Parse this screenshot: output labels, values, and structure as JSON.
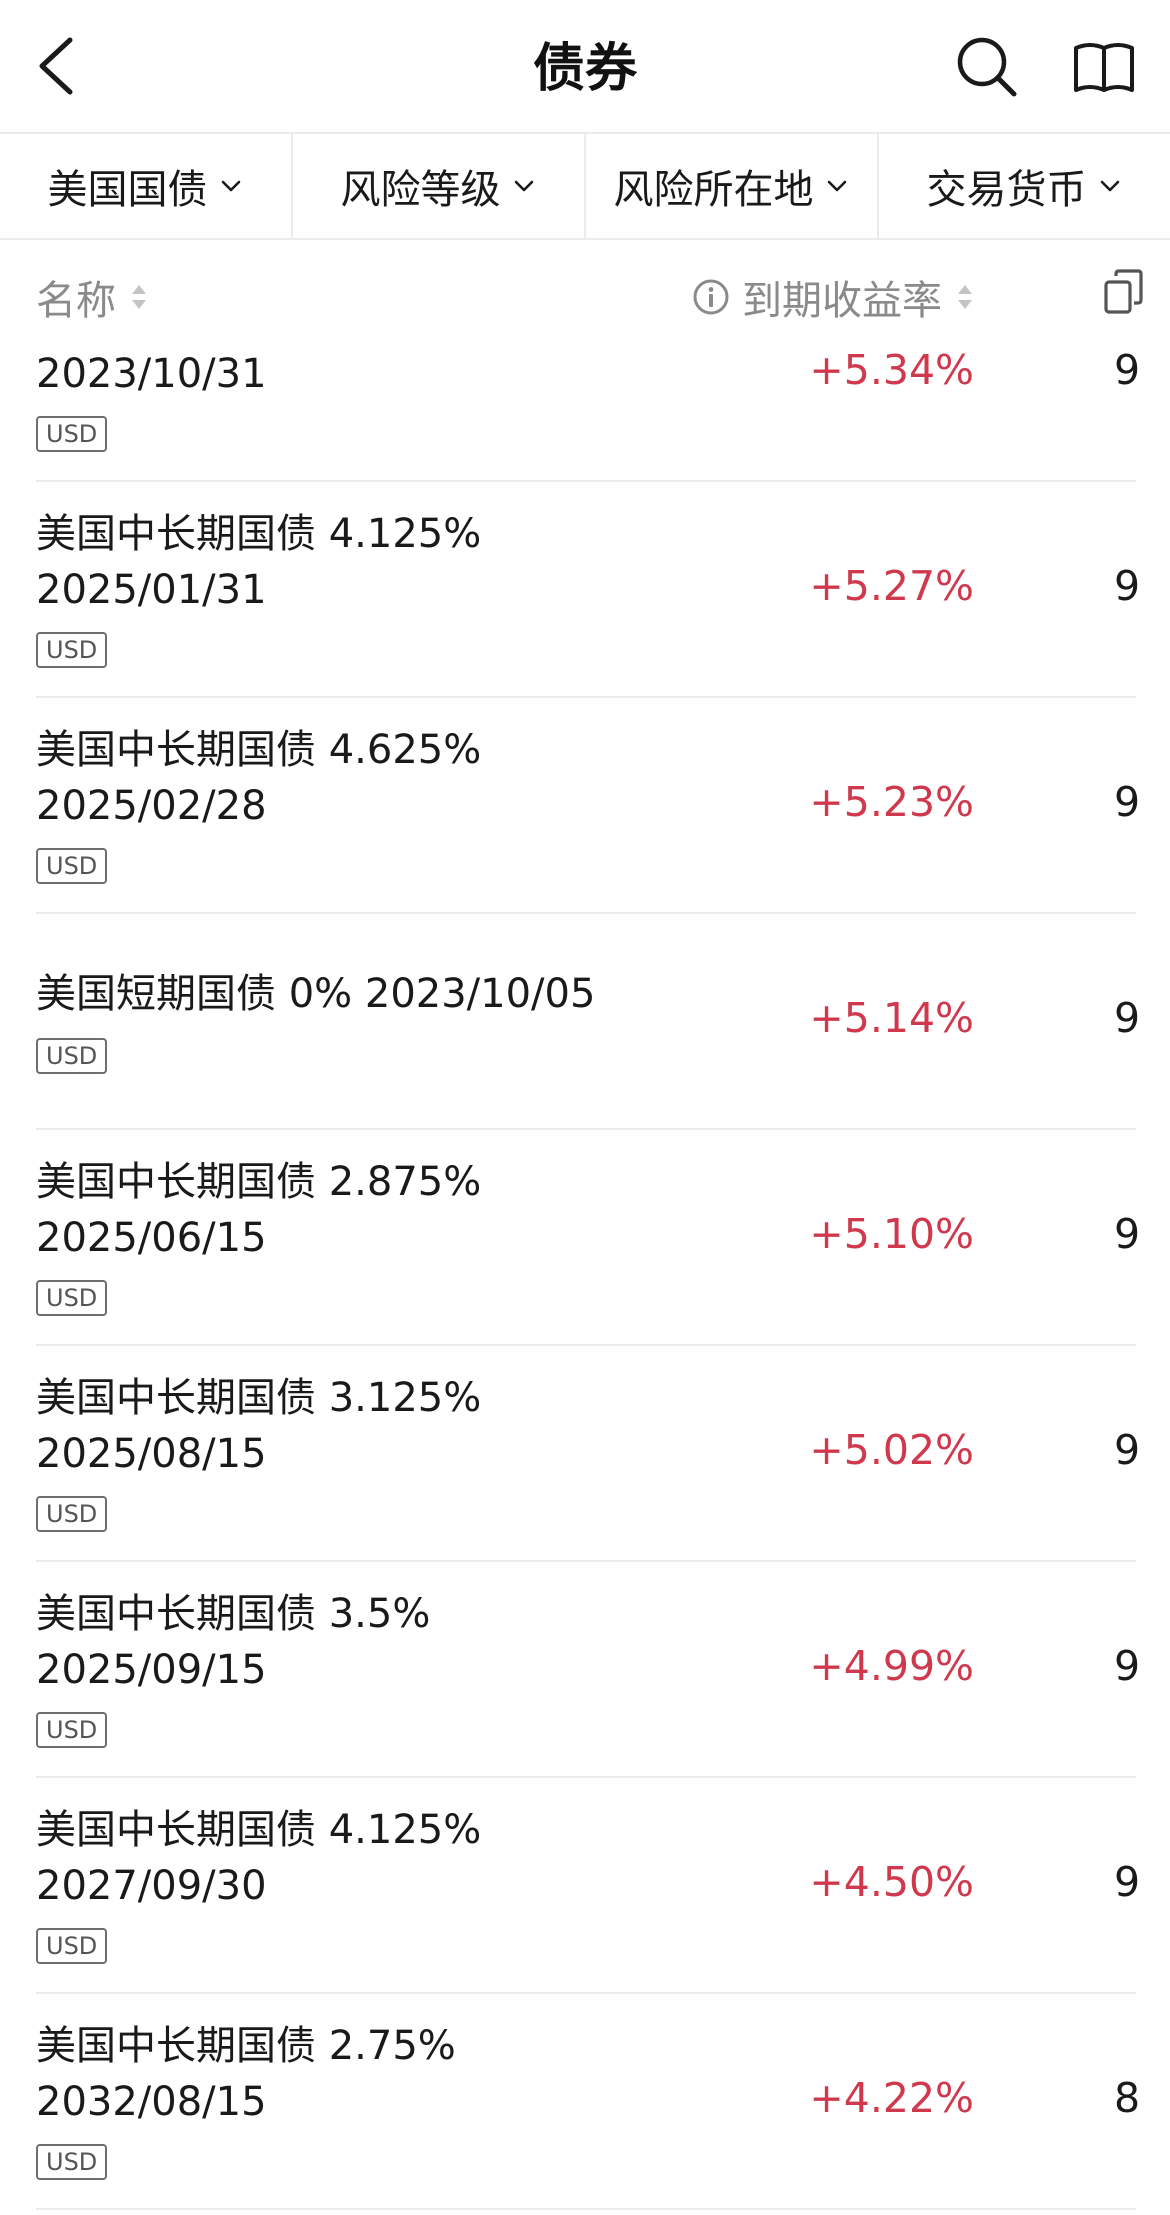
{
  "header": {
    "title": "债券"
  },
  "filters": [
    {
      "label": "美国国债"
    },
    {
      "label": "风险等级"
    },
    {
      "label": "风险所在地"
    },
    {
      "label": "交易货币"
    }
  ],
  "columns": {
    "name": "名称",
    "yield": "到期收益率"
  },
  "rows": [
    {
      "name_line1": "",
      "name_line2": "2023/10/31",
      "currency": "USD",
      "yield": "+5.34%",
      "extra": "9"
    },
    {
      "name_line1": "美国中长期国债 4.125%",
      "name_line2": "2025/01/31",
      "currency": "USD",
      "yield": "+5.27%",
      "extra": "9"
    },
    {
      "name_line1": "美国中长期国债 4.625%",
      "name_line2": "2025/02/28",
      "currency": "USD",
      "yield": "+5.23%",
      "extra": "9"
    },
    {
      "name_line1": "美国短期国债 0% 2023/10/05",
      "name_line2": "",
      "currency": "USD",
      "yield": "+5.14%",
      "extra": "9"
    },
    {
      "name_line1": "美国中长期国债 2.875%",
      "name_line2": "2025/06/15",
      "currency": "USD",
      "yield": "+5.10%",
      "extra": "9"
    },
    {
      "name_line1": "美国中长期国债 3.125%",
      "name_line2": "2025/08/15",
      "currency": "USD",
      "yield": "+5.02%",
      "extra": "9"
    },
    {
      "name_line1": "美国中长期国债 3.5%",
      "name_line2": "2025/09/15",
      "currency": "USD",
      "yield": "+4.99%",
      "extra": "9"
    },
    {
      "name_line1": "美国中长期国债 4.125%",
      "name_line2": "2027/09/30",
      "currency": "USD",
      "yield": "+4.50%",
      "extra": "9"
    },
    {
      "name_line1": "美国中长期国债 2.75%",
      "name_line2": "2032/08/15",
      "currency": "USD",
      "yield": "+4.22%",
      "extra": "8"
    }
  ],
  "colors": {
    "positive": "#d0394d",
    "text": "#1a1a1a",
    "muted": "#8a8a8a",
    "divider": "#ececec"
  },
  "icons": [
    "back-arrow-icon",
    "search-icon",
    "book-icon",
    "chevron-down-icon",
    "sort-icon",
    "info-icon",
    "copy-icon"
  ]
}
